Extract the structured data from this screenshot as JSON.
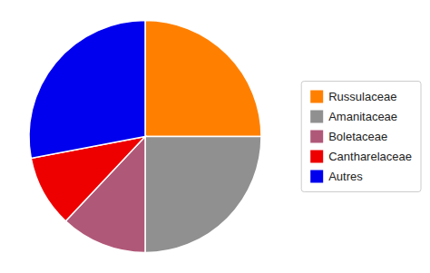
{
  "chart_data": {
    "type": "pie",
    "categories": [
      "Russulaceae",
      "Amanitaceae",
      "Boletaceae",
      "Cantharelaceae",
      "Autres"
    ],
    "values": [
      25,
      25,
      12,
      10,
      28
    ],
    "colors": [
      "#FF8000",
      "#909090",
      "#B05878",
      "#EE0000",
      "#0000EE"
    ],
    "legend": "right"
  }
}
